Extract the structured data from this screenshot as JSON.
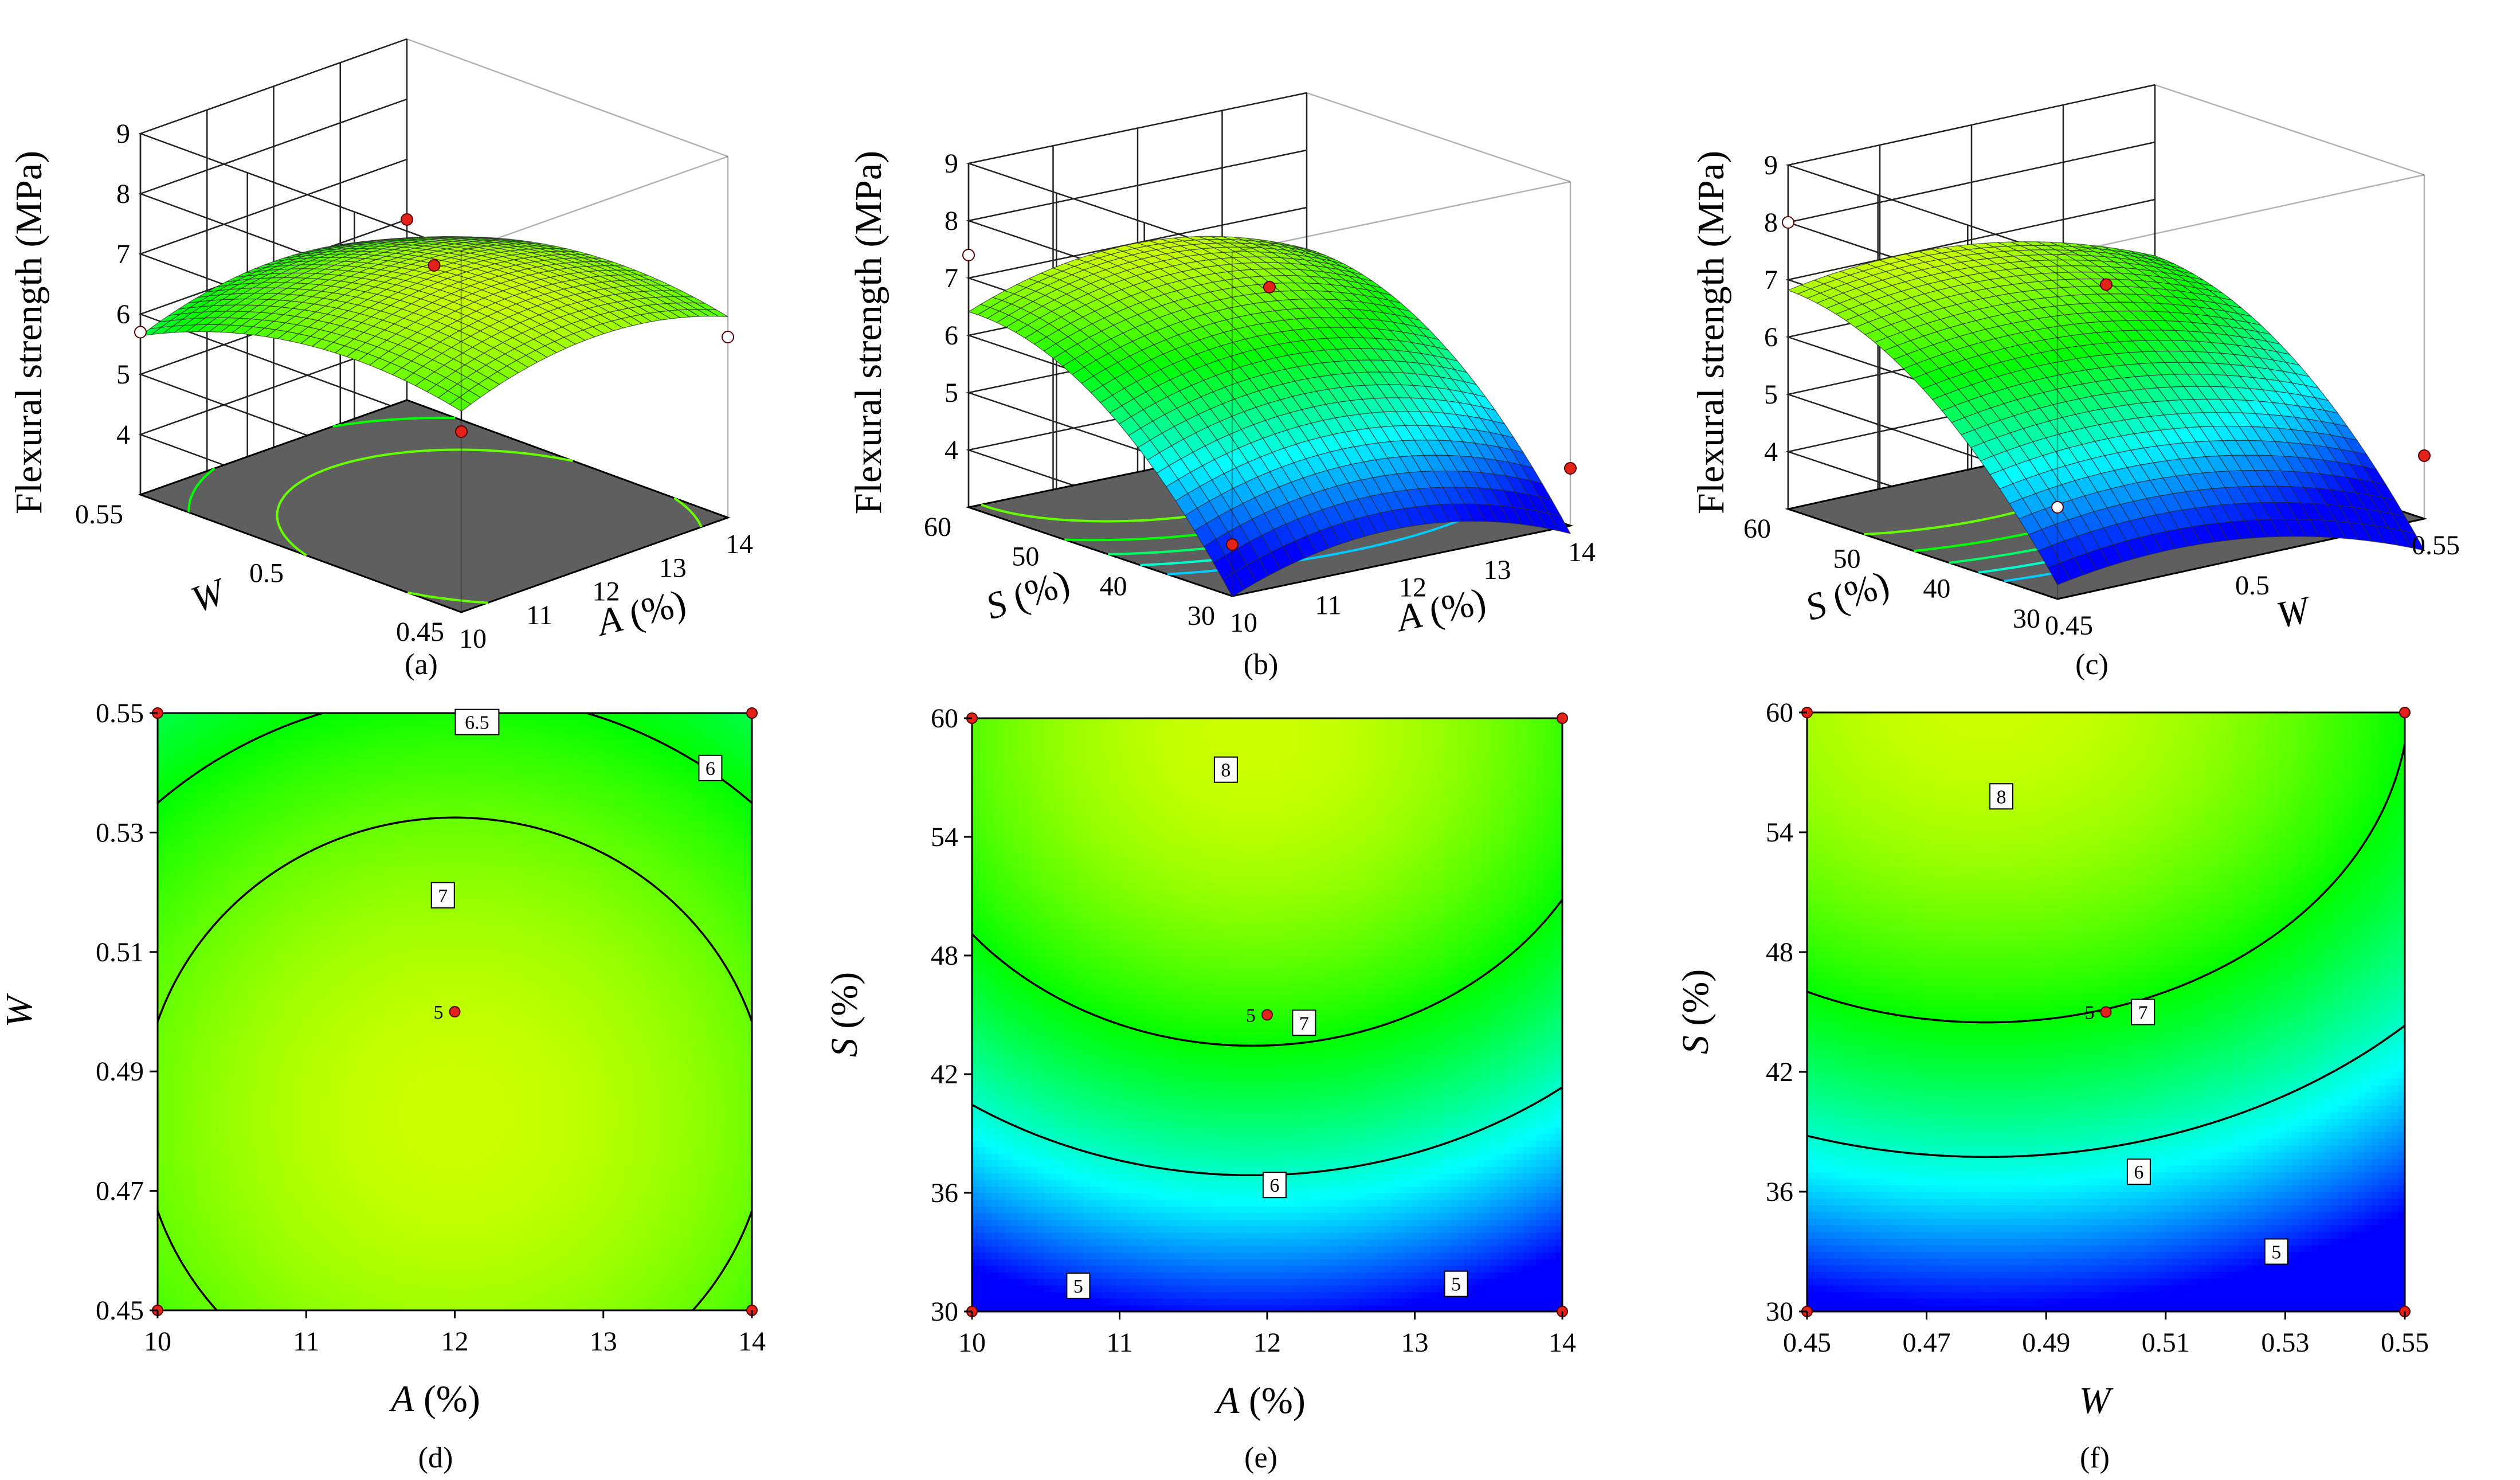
{
  "figure": {
    "panel_labels": [
      "(a)",
      "(b)",
      "(c)",
      "(d)",
      "(e)",
      "(f)"
    ]
  },
  "colors": {
    "surface_scale": [
      "#0000ff",
      "#00ffff",
      "#00ff00",
      "#ffff00",
      "#ff0000"
    ],
    "floor": "#5f5f5f",
    "point_red": "#e2231a"
  },
  "chart_data": [
    {
      "id": "a",
      "type": "surface3d",
      "label": "(a)",
      "zlabel": "Flexural strength (MPa)",
      "xlabel": "A (%)",
      "ylabel": "W",
      "xlabel_var": "A",
      "xlabel_unit": " (%)",
      "ylabel_var": "W",
      "ylabel_unit": "",
      "x_ticks": [
        "10",
        "11",
        "12",
        "13",
        "14"
      ],
      "y_ticks": [
        "0.45",
        "0.5",
        "0.55"
      ],
      "z_ticks": [
        "4",
        "5",
        "6",
        "7",
        "8",
        "9"
      ],
      "xlim": [
        10,
        14
      ],
      "ylim": [
        0.45,
        0.55
      ],
      "zlim": [
        3,
        9
      ],
      "model": {
        "center": 7.0,
        "a_coef": -0.45,
        "b_coef": -0.5,
        "a_center_offset": 0.0,
        "b_center_offset": -0.35,
        "cross": 0.0
      },
      "design_points": [
        {
          "x": 12,
          "y": 0.5,
          "z": 7.0,
          "style": "red"
        },
        {
          "x": 10,
          "y": 0.45,
          "z": 6.0,
          "style": "red"
        },
        {
          "x": 14,
          "y": 0.55,
          "z": 6.0,
          "style": "red"
        },
        {
          "x": 10,
          "y": 0.55,
          "z": 5.7,
          "style": "white"
        },
        {
          "x": 14,
          "y": 0.45,
          "z": 6.0,
          "style": "white"
        }
      ]
    },
    {
      "id": "b",
      "type": "surface3d",
      "label": "(b)",
      "zlabel": "Flexural strength (MPa)",
      "xlabel": "A (%)",
      "ylabel": "S (%)",
      "xlabel_var": "A",
      "xlabel_unit": " (%)",
      "ylabel_var": "S",
      "ylabel_unit": " (%)",
      "x_ticks": [
        "10",
        "11",
        "12",
        "13",
        "14"
      ],
      "y_ticks": [
        "30",
        "40",
        "50",
        "60"
      ],
      "z_ticks": [
        "4",
        "5",
        "6",
        "7",
        "8",
        "9"
      ],
      "xlim": [
        10,
        14
      ],
      "ylim": [
        30,
        60
      ],
      "zlim": [
        3,
        9
      ],
      "model": {
        "center": 7.0,
        "a_coef": -0.65,
        "b_coef": -0.9,
        "a_center_offset": -0.05,
        "b_center_offset": 0.95,
        "cross": 0.0
      },
      "design_points": [
        {
          "x": 12,
          "y": 45,
          "z": 7.0,
          "style": "red"
        },
        {
          "x": 10,
          "y": 30,
          "z": 3.9,
          "style": "red"
        },
        {
          "x": 14,
          "y": 30,
          "z": 4.0,
          "style": "red"
        },
        {
          "x": 10,
          "y": 60,
          "z": 7.4,
          "style": "white"
        }
      ]
    },
    {
      "id": "c",
      "type": "surface3d",
      "label": "(c)",
      "zlabel": "Flexural strength (MPa)",
      "xlabel": "W",
      "ylabel": "S (%)",
      "xlabel_var": "W",
      "xlabel_unit": "",
      "ylabel_var": "S",
      "ylabel_unit": " (%)",
      "x_ticks": [
        "0.45",
        "0.5",
        "0.55"
      ],
      "y_ticks": [
        "30",
        "40",
        "50",
        "60"
      ],
      "z_ticks": [
        "4",
        "5",
        "6",
        "7",
        "8",
        "9"
      ],
      "xlim": [
        0.45,
        0.55
      ],
      "ylim": [
        30,
        60
      ],
      "zlim": [
        3,
        9
      ],
      "model": {
        "center": 7.0,
        "a_coef": -0.5,
        "b_coef": -0.85,
        "a_center_offset": -0.4,
        "b_center_offset": 1.05,
        "cross": 0.0
      },
      "design_points": [
        {
          "x": 0.5,
          "y": 45,
          "z": 7.0,
          "style": "red"
        },
        {
          "x": 0.55,
          "y": 30,
          "z": 4.1,
          "style": "red"
        },
        {
          "x": 0.45,
          "y": 60,
          "z": 8.0,
          "style": "white"
        },
        {
          "x": 0.45,
          "y": 30,
          "z": 4.6,
          "style": "white"
        }
      ]
    },
    {
      "id": "d",
      "type": "contour",
      "label": "(d)",
      "xlabel": "A (%)",
      "ylabel": "W",
      "xlabel_var": "A",
      "xlabel_unit": " (%)",
      "ylabel_var": "W",
      "ylabel_unit": "",
      "x_ticks": [
        "10",
        "11",
        "12",
        "13",
        "14"
      ],
      "y_ticks": [
        "0.45",
        "0.47",
        "0.49",
        "0.51",
        "0.53",
        "0.55"
      ],
      "xlim": [
        10,
        14
      ],
      "ylim": [
        0.45,
        0.55
      ],
      "model": {
        "center": 7.0,
        "a_coef": -0.45,
        "b_coef": -0.5,
        "a_center_offset": 0.0,
        "b_center_offset": -0.35,
        "cross": 0.0
      },
      "color_range": [
        3.5,
        8.5
      ],
      "contour_levels": [
        6.0,
        6.5,
        7.0
      ],
      "contour_labels": [
        {
          "text": "6.5",
          "x": 12.15,
          "y": 0.5485
        },
        {
          "text": "6",
          "x": 13.72,
          "y": 0.5408
        },
        {
          "text": "7",
          "x": 11.92,
          "y": 0.5195
        }
      ],
      "center_point": {
        "x": 12,
        "y": 0.5,
        "count_label": "5"
      },
      "corner_points": [
        [
          10,
          0.45
        ],
        [
          14,
          0.45
        ],
        [
          10,
          0.55
        ],
        [
          14,
          0.55
        ]
      ]
    },
    {
      "id": "e",
      "type": "contour",
      "label": "(e)",
      "xlabel": "A (%)",
      "ylabel": "S (%)",
      "xlabel_var": "A",
      "xlabel_unit": " (%)",
      "ylabel_var": "S",
      "ylabel_unit": " (%)",
      "x_ticks": [
        "10",
        "11",
        "12",
        "13",
        "14"
      ],
      "y_ticks": [
        "30",
        "36",
        "42",
        "48",
        "54",
        "60"
      ],
      "xlim": [
        10,
        14
      ],
      "ylim": [
        30,
        60
      ],
      "model": {
        "center": 7.0,
        "a_coef": -0.65,
        "b_coef": -0.9,
        "a_center_offset": -0.05,
        "b_center_offset": 0.95,
        "cross": 0.0
      },
      "color_range": [
        3.5,
        8.5
      ],
      "contour_levels": [
        5.0,
        6.0,
        7.0,
        8.0
      ],
      "contour_labels": [
        {
          "text": "8",
          "x": 11.72,
          "y": 57.4
        },
        {
          "text": "7",
          "x": 12.25,
          "y": 44.6
        },
        {
          "text": "6",
          "x": 12.05,
          "y": 36.4
        },
        {
          "text": "5",
          "x": 10.72,
          "y": 31.3
        },
        {
          "text": "5",
          "x": 13.28,
          "y": 31.4
        }
      ],
      "center_point": {
        "x": 12,
        "y": 45,
        "count_label": "5"
      },
      "corner_points": [
        [
          10,
          30
        ],
        [
          14,
          30
        ],
        [
          10,
          60
        ],
        [
          14,
          60
        ]
      ]
    },
    {
      "id": "f",
      "type": "contour",
      "label": "(f)",
      "xlabel": "W",
      "ylabel": "S (%)",
      "xlabel_var": "W",
      "xlabel_unit": "",
      "ylabel_var": "S",
      "ylabel_unit": " (%)",
      "x_ticks": [
        "0.45",
        "0.47",
        "0.49",
        "0.51",
        "0.53",
        "0.55"
      ],
      "y_ticks": [
        "30",
        "36",
        "42",
        "48",
        "54",
        "60"
      ],
      "xlim": [
        0.45,
        0.55
      ],
      "ylim": [
        30,
        60
      ],
      "model": {
        "center": 7.0,
        "a_coef": -0.5,
        "b_coef": -0.85,
        "a_center_offset": -0.4,
        "b_center_offset": 1.05,
        "cross": 0.0
      },
      "color_range": [
        3.5,
        8.5
      ],
      "contour_levels": [
        5.0,
        6.0,
        7.0,
        8.0
      ],
      "contour_labels": [
        {
          "text": "8",
          "x": 0.4825,
          "y": 55.8
        },
        {
          "text": "7",
          "x": 0.5062,
          "y": 45.0
        },
        {
          "text": "6",
          "x": 0.5055,
          "y": 37.0
        },
        {
          "text": "5",
          "x": 0.5285,
          "y": 33.0
        }
      ],
      "center_point": {
        "x": 0.5,
        "y": 45,
        "count_label": "5"
      },
      "corner_points": [
        [
          0.45,
          30
        ],
        [
          0.55,
          30
        ],
        [
          0.45,
          60
        ],
        [
          0.55,
          60
        ]
      ]
    }
  ]
}
